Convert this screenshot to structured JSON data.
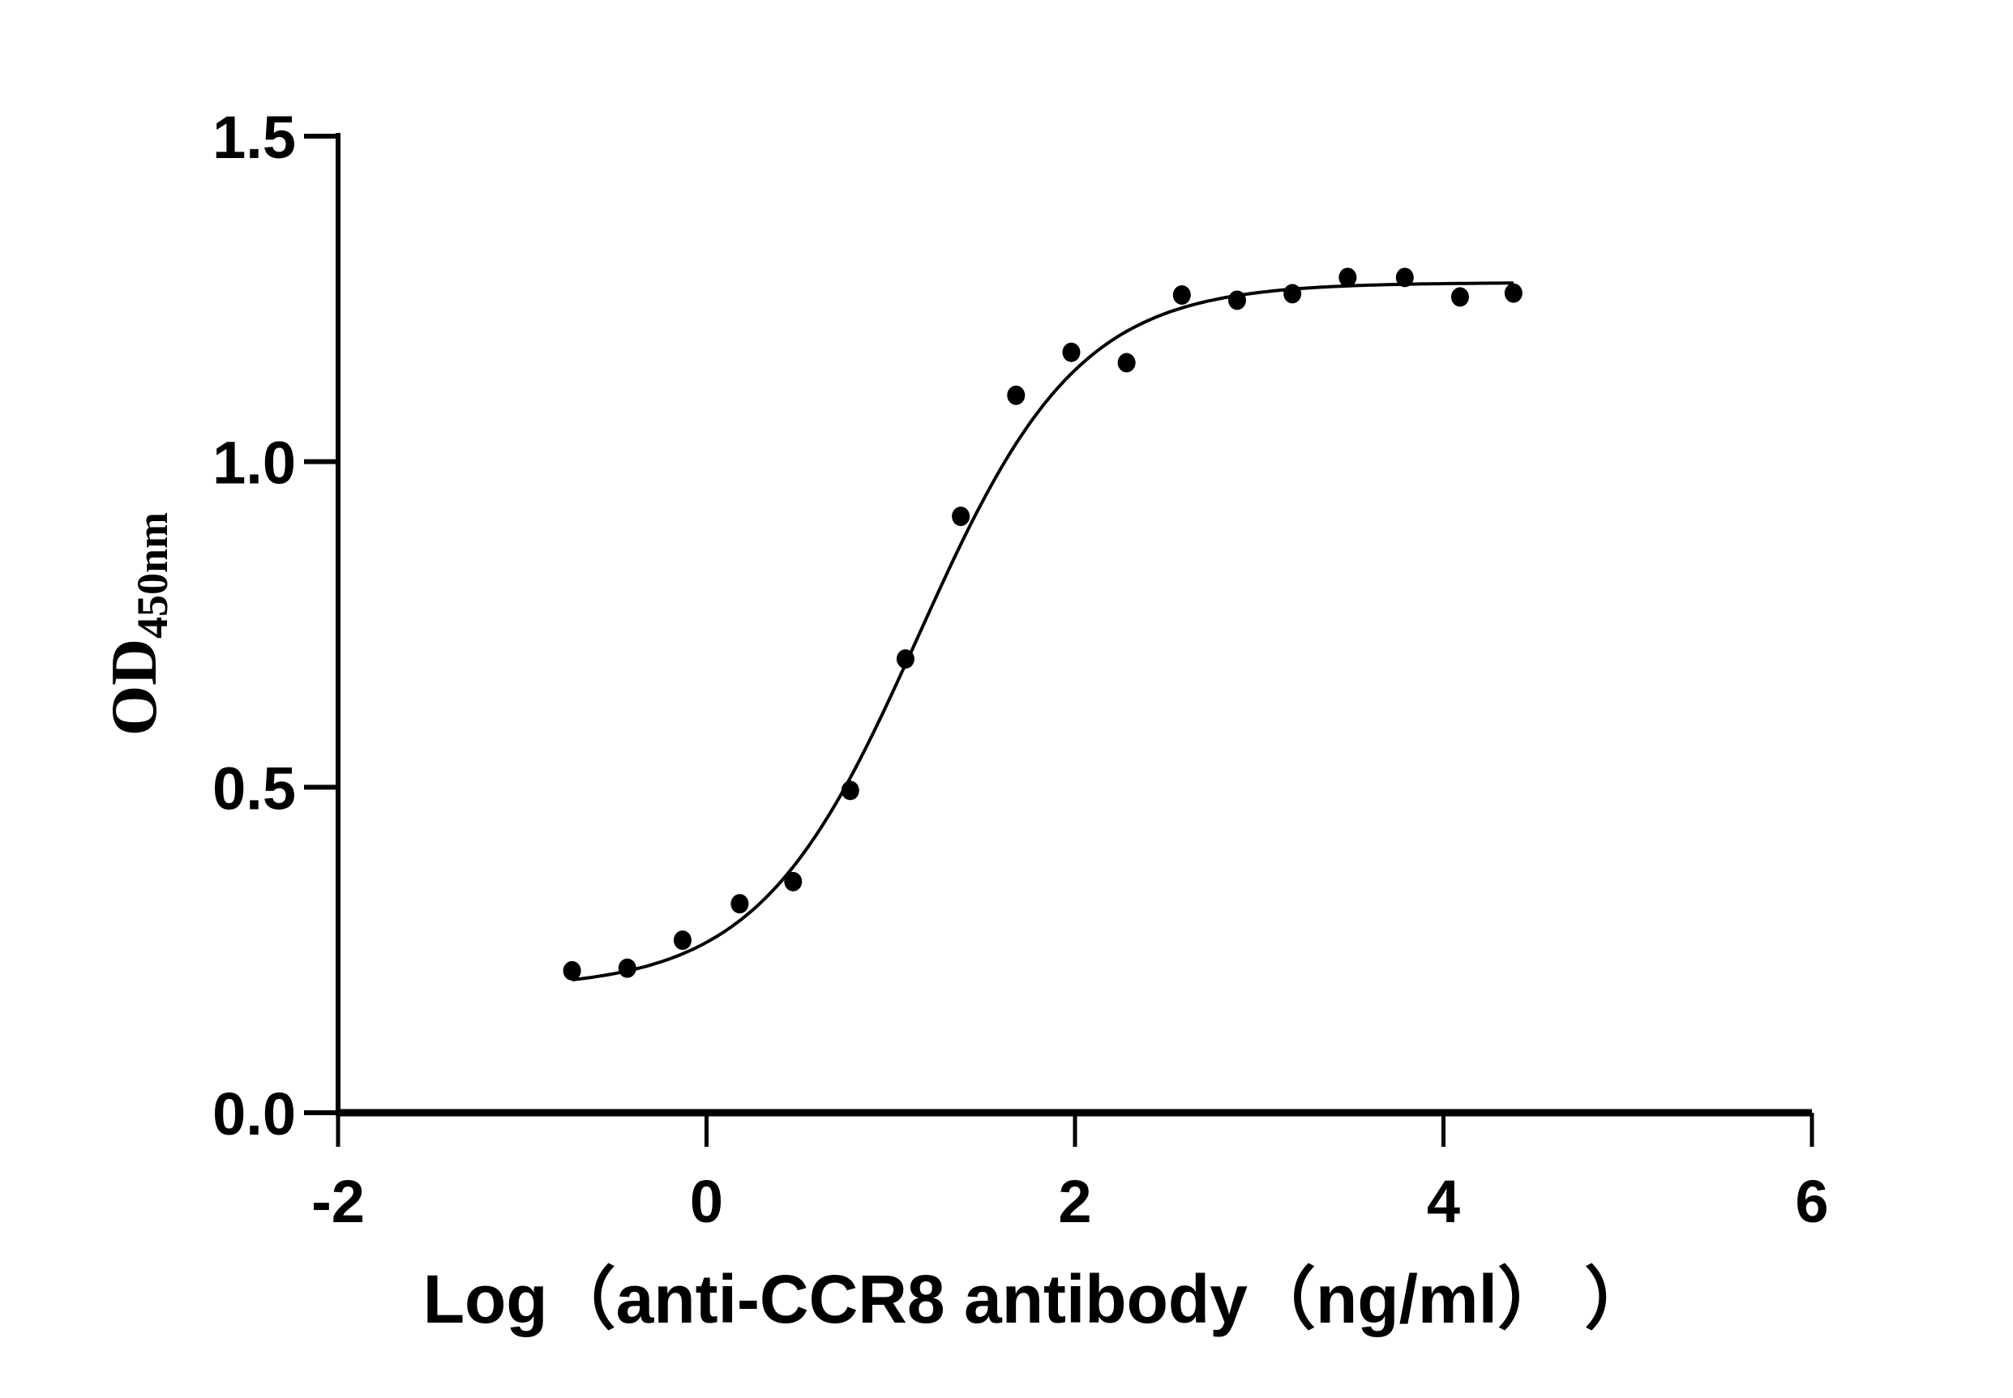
{
  "chart_data": {
    "type": "scatter",
    "title": "",
    "xlabel": "Log（anti-CCR8 antibody（ng/ml）  ）",
    "ylabel": "OD",
    "ylabel_subscript": "450nm",
    "xlim": [
      -2,
      6
    ],
    "ylim": [
      0,
      1.5
    ],
    "xticks": [
      -2,
      0,
      2,
      4,
      6
    ],
    "xtick_labels": [
      "-2",
      "0",
      "2",
      "4",
      "6"
    ],
    "yticks": [
      0,
      0.5,
      1.0,
      1.5
    ],
    "ytick_labels": [
      "0.0",
      "0.5",
      "1.0",
      "1.5"
    ],
    "grid": false,
    "points": {
      "x": [
        -0.73,
        -0.43,
        -0.13,
        0.18,
        0.47,
        0.78,
        1.08,
        1.38,
        1.68,
        1.98,
        2.28,
        2.58,
        2.88,
        3.18,
        3.48,
        3.79,
        4.09,
        4.38
      ],
      "y": [
        0.218,
        0.222,
        0.265,
        0.321,
        0.355,
        0.495,
        0.697,
        0.916,
        1.102,
        1.168,
        1.152,
        1.256,
        1.248,
        1.258,
        1.283,
        1.283,
        1.253,
        1.259
      ]
    },
    "fit": {
      "model": "four-parameter logistic",
      "bottom": 0.19,
      "top": 1.275,
      "logEC50": 1.15,
      "hill": 1.0,
      "x_range": [
        -0.73,
        4.38
      ]
    },
    "colors": {
      "points": "#000000",
      "curve": "#000000",
      "axes": "#000000"
    }
  }
}
